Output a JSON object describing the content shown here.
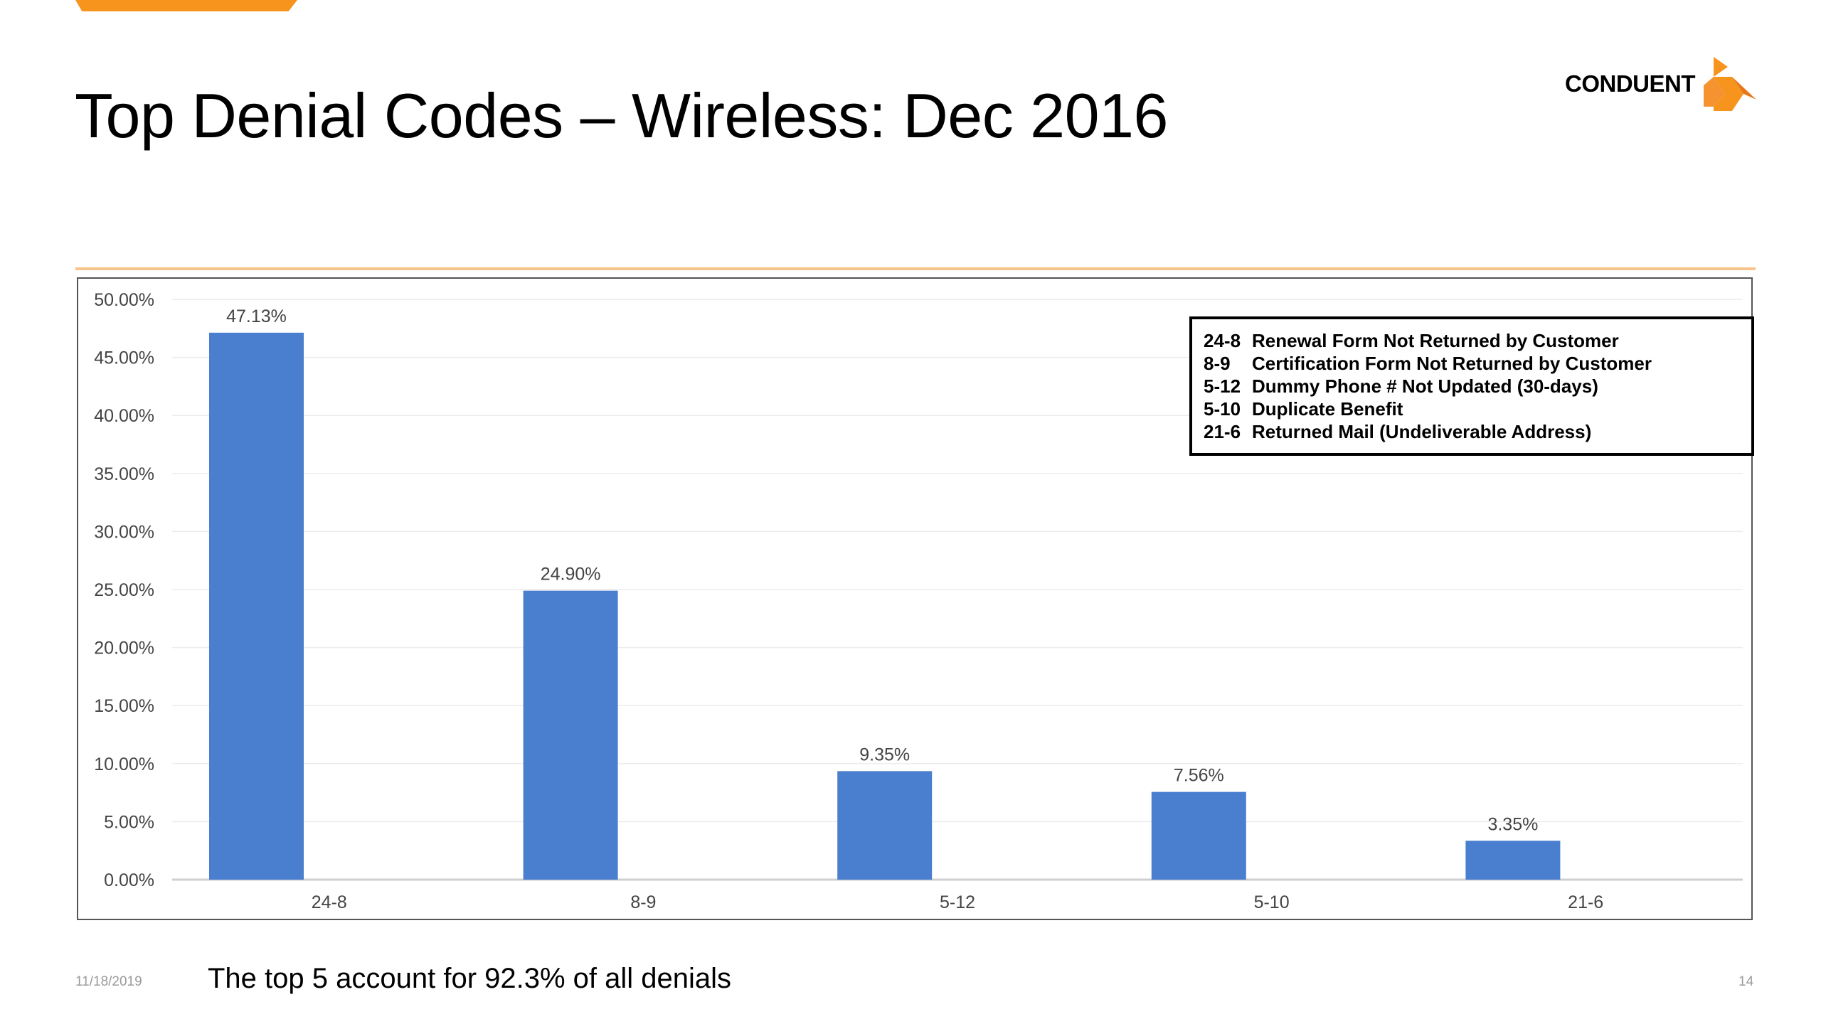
{
  "title": "Top Denial Codes – Wireless: Dec 2016",
  "logo": {
    "text": "CONDUENT",
    "icon": "conduent-logo-icon",
    "color": "#f7941d"
  },
  "legend": [
    {
      "code": "24-8",
      "label": "Renewal Form Not Returned by Customer"
    },
    {
      "code": "8-9",
      "label": "Certification Form Not Returned by Customer"
    },
    {
      "code": "5-12",
      "label": "Dummy Phone # Not Updated (30-days)"
    },
    {
      "code": "5-10",
      "label": "Duplicate Benefit"
    },
    {
      "code": "21-6",
      "label": "Returned Mail (Undeliverable Address)"
    }
  ],
  "footer": {
    "date": "11/18/2019",
    "note": "The top 5 account for 92.3% of all denials",
    "page": "14"
  },
  "colors": {
    "bar": "#4a7ecf",
    "accent": "#f7941d",
    "rule": "#f7c48a"
  },
  "chart_data": {
    "type": "bar",
    "categories": [
      "24-8",
      "8-9",
      "5-12",
      "5-10",
      "21-6"
    ],
    "values": [
      47.13,
      24.9,
      9.35,
      7.56,
      3.35
    ],
    "data_labels": [
      "47.13%",
      "24.90%",
      "9.35%",
      "7.56%",
      "3.35%"
    ],
    "ylim": [
      0,
      50
    ],
    "yticks": [
      "0.00%",
      "5.00%",
      "10.00%",
      "15.00%",
      "20.00%",
      "25.00%",
      "30.00%",
      "35.00%",
      "40.00%",
      "45.00%",
      "50.00%"
    ],
    "grid": true,
    "legend_position": "top-right"
  }
}
